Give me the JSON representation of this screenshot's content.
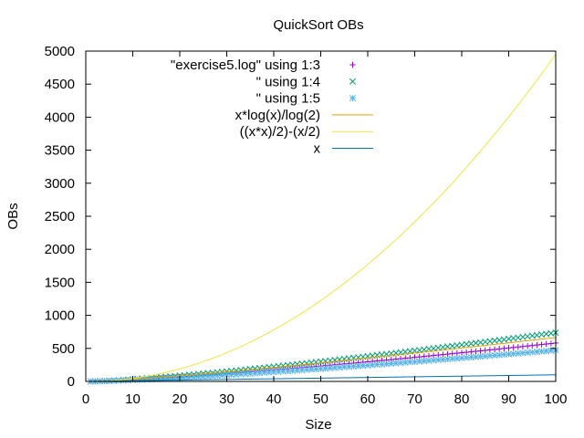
{
  "chart_data": {
    "type": "scatter",
    "title": "QuickSort OBs",
    "xlabel": "Size",
    "ylabel": "OBs",
    "xlim": [
      0,
      100
    ],
    "ylim": [
      0,
      5000
    ],
    "xticks": [
      "0",
      "10",
      "20",
      "30",
      "40",
      "50",
      "60",
      "70",
      "80",
      "90",
      "100"
    ],
    "yticks": [
      "0",
      "500",
      "1000",
      "1500",
      "2000",
      "2500",
      "3000",
      "3500",
      "4000",
      "4500",
      "5000"
    ],
    "grid": false,
    "legend_position": "top-right",
    "series": [
      {
        "name": "\"exercise5.log\" using 1:3",
        "marker": "plus",
        "color": "#9400d3",
        "x": [
          1,
          2,
          3,
          4,
          5,
          6,
          7,
          8,
          9,
          10,
          11,
          12,
          13,
          14,
          15,
          16,
          17,
          18,
          19,
          20,
          21,
          22,
          23,
          24,
          25,
          26,
          27,
          28,
          29,
          30,
          31,
          32,
          33,
          34,
          35,
          36,
          37,
          38,
          39,
          40,
          41,
          42,
          43,
          44,
          45,
          46,
          47,
          48,
          49,
          50,
          51,
          52,
          53,
          54,
          55,
          56,
          57,
          58,
          59,
          60,
          61,
          62,
          63,
          64,
          65,
          66,
          67,
          68,
          69,
          70,
          71,
          72,
          73,
          74,
          75,
          76,
          77,
          78,
          79,
          80,
          81,
          82,
          83,
          84,
          85,
          86,
          87,
          88,
          89,
          90,
          91,
          92,
          93,
          94,
          95,
          96,
          97,
          98,
          99,
          100
        ],
        "y": [
          0,
          1,
          3,
          5,
          8,
          11,
          14,
          18,
          21,
          25,
          29,
          33,
          37,
          41,
          45,
          49,
          54,
          58,
          63,
          67,
          72,
          77,
          82,
          87,
          92,
          97,
          102,
          107,
          112,
          117,
          123,
          128,
          134,
          139,
          145,
          150,
          156,
          161,
          167,
          173,
          179,
          185,
          191,
          197,
          203,
          209,
          215,
          221,
          227,
          233,
          240,
          246,
          252,
          259,
          265,
          271,
          278,
          284,
          291,
          297,
          304,
          310,
          317,
          324,
          330,
          337,
          344,
          351,
          357,
          364,
          371,
          378,
          385,
          392,
          399,
          406,
          413,
          420,
          427,
          434,
          441,
          448,
          456,
          463,
          470,
          477,
          484,
          492,
          499,
          506,
          514,
          521,
          528,
          536,
          543,
          551,
          558,
          566,
          573,
          581
        ]
      },
      {
        "name": "\" using 1:4",
        "marker": "cross",
        "color": "#009e73",
        "x": [
          1,
          2,
          3,
          4,
          5,
          6,
          7,
          8,
          9,
          10,
          11,
          12,
          13,
          14,
          15,
          16,
          17,
          18,
          19,
          20,
          21,
          22,
          23,
          24,
          25,
          26,
          27,
          28,
          29,
          30,
          31,
          32,
          33,
          34,
          35,
          36,
          37,
          38,
          39,
          40,
          41,
          42,
          43,
          44,
          45,
          46,
          47,
          48,
          49,
          50,
          51,
          52,
          53,
          54,
          55,
          56,
          57,
          58,
          59,
          60,
          61,
          62,
          63,
          64,
          65,
          66,
          67,
          68,
          69,
          70,
          71,
          72,
          73,
          74,
          75,
          76,
          77,
          78,
          79,
          80,
          81,
          82,
          83,
          84,
          85,
          86,
          87,
          88,
          89,
          90,
          91,
          92,
          93,
          94,
          95,
          96,
          97,
          98,
          99,
          100
        ],
        "y": [
          0,
          1,
          4,
          7,
          10,
          14,
          18,
          22,
          27,
          32,
          37,
          42,
          47,
          52,
          58,
          63,
          69,
          75,
          81,
          87,
          93,
          99,
          105,
          112,
          118,
          125,
          131,
          138,
          145,
          151,
          158,
          165,
          172,
          179,
          187,
          194,
          201,
          208,
          216,
          223,
          230,
          238,
          246,
          253,
          261,
          268,
          276,
          284,
          292,
          300,
          308,
          316,
          324,
          332,
          340,
          348,
          356,
          364,
          373,
          381,
          389,
          398,
          406,
          414,
          423,
          431,
          440,
          448,
          457,
          466,
          474,
          483,
          492,
          500,
          509,
          518,
          527,
          536,
          545,
          554,
          563,
          572,
          581,
          590,
          599,
          608,
          617,
          626,
          635,
          645,
          654,
          663,
          672,
          682,
          691,
          700,
          710,
          719,
          728,
          738
        ]
      },
      {
        "name": "\" using 1:5",
        "marker": "star",
        "color": "#56b4e9",
        "x": [
          1,
          2,
          3,
          4,
          5,
          6,
          7,
          8,
          9,
          10,
          11,
          12,
          13,
          14,
          15,
          16,
          17,
          18,
          19,
          20,
          21,
          22,
          23,
          24,
          25,
          26,
          27,
          28,
          29,
          30,
          31,
          32,
          33,
          34,
          35,
          36,
          37,
          38,
          39,
          40,
          41,
          42,
          43,
          44,
          45,
          46,
          47,
          48,
          49,
          50,
          51,
          52,
          53,
          54,
          55,
          56,
          57,
          58,
          59,
          60,
          61,
          62,
          63,
          64,
          65,
          66,
          67,
          68,
          69,
          70,
          71,
          72,
          73,
          74,
          75,
          76,
          77,
          78,
          79,
          80,
          81,
          82,
          83,
          84,
          85,
          86,
          87,
          88,
          89,
          90,
          91,
          92,
          93,
          94,
          95,
          96,
          97,
          98,
          99,
          100
        ],
        "y": [
          0,
          1,
          2,
          4,
          6,
          8,
          11,
          14,
          17,
          20,
          23,
          26,
          30,
          33,
          37,
          40,
          44,
          48,
          51,
          55,
          59,
          63,
          67,
          71,
          75,
          79,
          84,
          88,
          92,
          96,
          101,
          105,
          110,
          114,
          119,
          123,
          128,
          133,
          137,
          142,
          147,
          152,
          156,
          161,
          166,
          171,
          176,
          181,
          186,
          191,
          196,
          201,
          206,
          211,
          217,
          222,
          227,
          232,
          238,
          243,
          248,
          254,
          259,
          264,
          270,
          275,
          281,
          286,
          292,
          297,
          303,
          308,
          314,
          320,
          325,
          331,
          337,
          342,
          348,
          354,
          359,
          365,
          371,
          377,
          383,
          389,
          394,
          400,
          406,
          412,
          418,
          424,
          430,
          436,
          442,
          448,
          454,
          460,
          466,
          472
        ]
      },
      {
        "name": "x*log(x)/log(2)",
        "marker": "line",
        "color": "#e69f00",
        "function": "nlogn"
      },
      {
        "name": "((x*x)/2)-(x/2)",
        "marker": "line",
        "color": "#f0e442",
        "function": "quadratic"
      },
      {
        "name": "x",
        "marker": "line",
        "color": "#0072b2",
        "function": "linear"
      }
    ]
  }
}
